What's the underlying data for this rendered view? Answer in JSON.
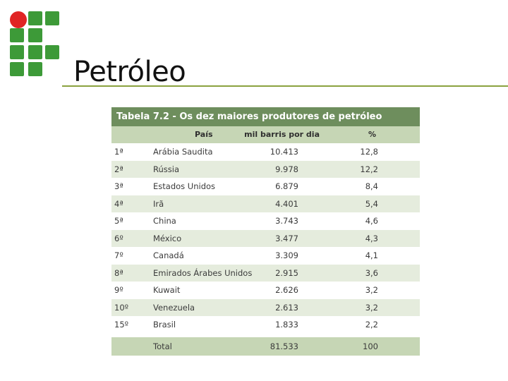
{
  "slide": {
    "title": "Petróleo"
  },
  "table": {
    "caption": "Tabela 7.2 - Os dez maiores produtores de petróleo",
    "headers": [
      "País",
      "mil barris por dia",
      "%"
    ],
    "rows": [
      {
        "rank": "1ª",
        "country": "Arábia Saudita",
        "value": "10.413",
        "pct": "12,8"
      },
      {
        "rank": "2ª",
        "country": "Rússia",
        "value": "9.978",
        "pct": "12,2"
      },
      {
        "rank": "3ª",
        "country": "Estados Unidos",
        "value": "6.879",
        "pct": "8,4"
      },
      {
        "rank": "4ª",
        "country": "Irã",
        "value": "4.401",
        "pct": "5,4"
      },
      {
        "rank": "5ª",
        "country": "China",
        "value": "3.743",
        "pct": "4,6"
      },
      {
        "rank": "6º",
        "country": "México",
        "value": "3.477",
        "pct": "4,3"
      },
      {
        "rank": "7º",
        "country": "Canadá",
        "value": "3.309",
        "pct": "4,1"
      },
      {
        "rank": "8ª",
        "country": "Emirados Árabes Unidos",
        "value": "2.915",
        "pct": "3,6"
      },
      {
        "rank": "9º",
        "country": "Kuwait",
        "value": "2.626",
        "pct": "3,2"
      },
      {
        "rank": "10º",
        "country": "Venezuela",
        "value": "2.613",
        "pct": "3,2"
      },
      {
        "rank": "15º",
        "country": "Brasil",
        "value": "1.833",
        "pct": "2,2"
      }
    ],
    "total": {
      "label": "Total",
      "value": "81.533",
      "pct": "100"
    }
  },
  "colors": {
    "logo_green": "#3d9a38",
    "logo_red": "#e02424",
    "rule": "#8ba23f",
    "caption_bg": "#6e8e5d",
    "header_bg": "#c6d6b5",
    "stripe_bg": "#e5ecdd"
  }
}
